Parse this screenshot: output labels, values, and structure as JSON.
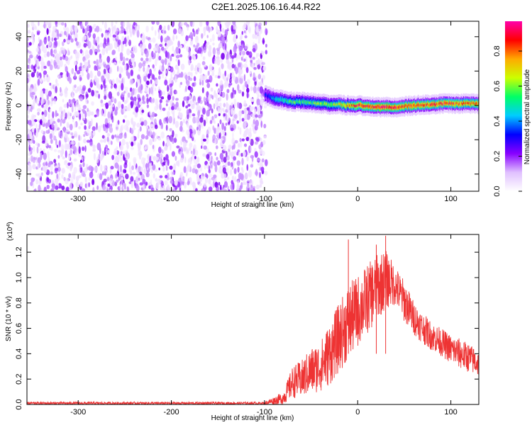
{
  "title": "C2E1.2025.106.16.44.R22",
  "chart_data": [
    {
      "type": "heatmap",
      "xlabel": "Height of straight line (km)",
      "ylabel": "Frequency (Hz)",
      "xlim": [
        -355,
        130
      ],
      "ylim": [
        -50,
        49
      ],
      "xticks": [
        -300,
        -200,
        -100,
        0,
        100
      ],
      "yticks": [
        -40,
        -20,
        0,
        20,
        40
      ],
      "xticklabels": [
        "-300",
        "-200",
        "-100",
        "0",
        "100"
      ],
      "yticklabels": [
        "-40",
        "-20",
        "0",
        "20",
        "40"
      ],
      "colorbar": {
        "label": "Normalized spectral amplitude",
        "range": [
          0.0,
          0.97
        ],
        "ticks": [
          0.0,
          0.2,
          0.4,
          0.6,
          0.8
        ],
        "ticklabels": [
          "0.0",
          "0.2",
          "0.4",
          "0.6",
          "0.8"
        ],
        "colors": [
          "#ffffff",
          "#e0c0ff",
          "#8800ff",
          "#0000ff",
          "#00ccff",
          "#00ff66",
          "#ccff00",
          "#ffaa00",
          "#ff0000",
          "#ff00aa"
        ]
      },
      "noise_region": {
        "x": [
          -355,
          -98
        ],
        "amplitude_range": [
          0.0,
          0.15
        ]
      },
      "signal_ridge": {
        "x": [
          -100,
          -90,
          -80,
          -70,
          -60,
          -50,
          -40,
          -30,
          -20,
          -10,
          0,
          10,
          20,
          30,
          40,
          50,
          60,
          70,
          80,
          90,
          100,
          110,
          120,
          130
        ],
        "freq": [
          6,
          4,
          3,
          2,
          2,
          1.5,
          1,
          0.5,
          0.5,
          0,
          0,
          -0.5,
          -1,
          -1,
          -1,
          -0.5,
          0,
          0.5,
          0.5,
          1,
          1,
          1,
          1,
          1
        ],
        "peak_amplitude": [
          0.3,
          0.45,
          0.5,
          0.55,
          0.55,
          0.55,
          0.6,
          0.6,
          0.65,
          0.75,
          0.85,
          0.85,
          0.9,
          0.9,
          0.9,
          0.85,
          0.85,
          0.85,
          0.85,
          0.85,
          0.85,
          0.8,
          0.8,
          0.8
        ]
      }
    },
    {
      "type": "line",
      "xlabel": "Height of straight line (km)",
      "ylabel": "SNR (10 * v/v)",
      "y_multiplier": "(x10",
      "y_multiplier_exp": "4",
      "y_multiplier_close": ")",
      "xlim": [
        -355,
        130
      ],
      "ylim": [
        0,
        1.34
      ],
      "xticks": [
        -300,
        -200,
        -100,
        0,
        100
      ],
      "yticks": [
        0.0,
        0.2,
        0.4,
        0.6,
        0.8,
        1.0,
        1.2
      ],
      "xticklabels": [
        "-300",
        "-200",
        "-100",
        "0",
        "100"
      ],
      "yticklabels": [
        "0.0",
        "0.2",
        "0.4",
        "0.6",
        "0.8",
        "1.0",
        "1.2"
      ],
      "color": "#ee3333",
      "envelope": {
        "x": [
          -355,
          -100,
          -80,
          -70,
          -60,
          -50,
          -40,
          -30,
          -20,
          -10,
          0,
          10,
          20,
          30,
          40,
          50,
          60,
          70,
          80,
          90,
          100,
          110,
          120,
          130
        ],
        "low": [
          0.0,
          0.0,
          0.0,
          0.05,
          0.05,
          0.08,
          0.1,
          0.15,
          0.25,
          0.35,
          0.45,
          0.55,
          0.65,
          0.75,
          0.78,
          0.65,
          0.55,
          0.48,
          0.42,
          0.38,
          0.32,
          0.28,
          0.25,
          0.22
        ],
        "high": [
          0.02,
          0.02,
          0.1,
          0.3,
          0.35,
          0.45,
          0.5,
          0.65,
          0.8,
          0.95,
          1.02,
          1.1,
          1.18,
          1.22,
          1.1,
          0.98,
          0.82,
          0.72,
          0.65,
          0.6,
          0.55,
          0.52,
          0.48,
          0.42
        ]
      },
      "spikes": [
        {
          "x": -10,
          "y": 1.3
        },
        {
          "x": 20,
          "y": 1.26
        },
        {
          "x": 30,
          "y": 1.33
        }
      ]
    }
  ]
}
